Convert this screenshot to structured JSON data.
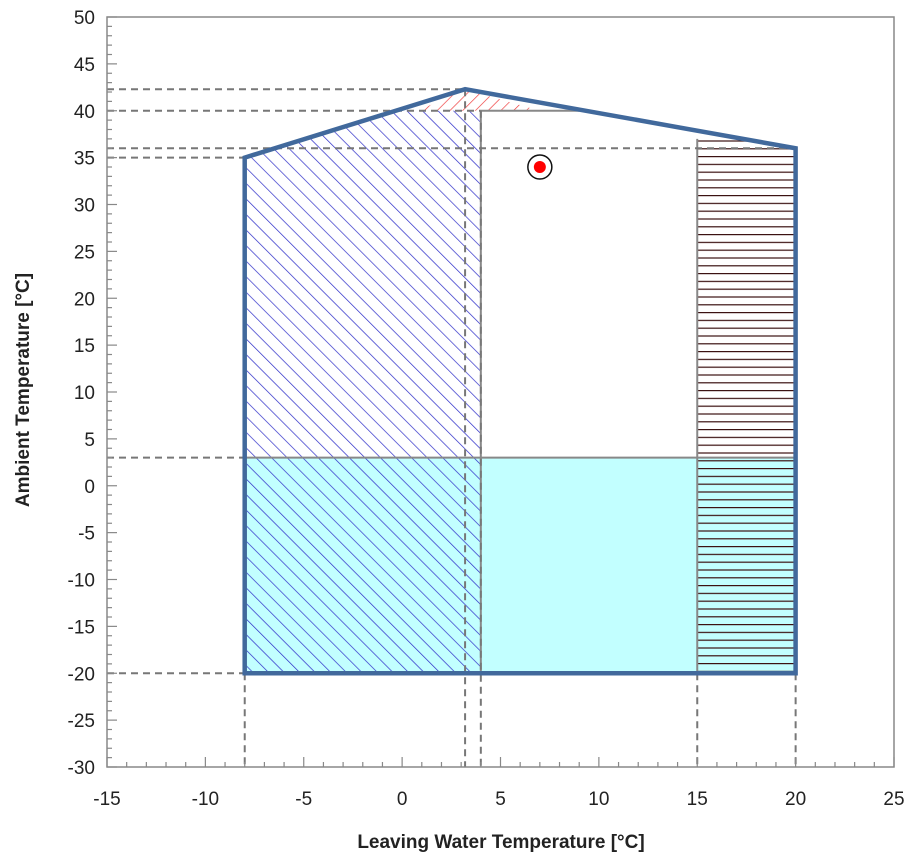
{
  "chart_data": {
    "type": "area",
    "xlabel": "Leaving Water Temperature [°C]",
    "ylabel": "Ambient Temperature [°C]",
    "xlim": [
      -15,
      25
    ],
    "ylim": [
      -30,
      50
    ],
    "x_ticks": [
      -15,
      -10,
      -5,
      0,
      5,
      10,
      15,
      20,
      25
    ],
    "y_ticks": [
      -30,
      -25,
      -20,
      -15,
      -10,
      -5,
      0,
      5,
      10,
      15,
      20,
      25,
      30,
      35,
      40,
      45,
      50
    ],
    "x_minor_step": 1,
    "y_minor_step": 1,
    "grid": false,
    "envelope": [
      [
        -8,
        -20
      ],
      [
        -8,
        35
      ],
      [
        3.2,
        42.3
      ],
      [
        20,
        36
      ],
      [
        20,
        -20
      ]
    ],
    "regions": [
      {
        "id": "low-ambient-zone",
        "fill": "cyan",
        "color": "#c2ffff",
        "x": [
          -8,
          20
        ],
        "y": [
          -20,
          3
        ]
      },
      {
        "id": "low-lwt-zone",
        "fill": "diagonal-hatch",
        "color": "#2c2cc8",
        "x": [
          -8,
          4
        ],
        "y": [
          -20,
          40
        ]
      },
      {
        "id": "high-lwt-zone",
        "fill": "horizontal-hatch",
        "color": "#3a1010",
        "x": [
          15,
          20
        ],
        "y": [
          -20,
          37
        ]
      },
      {
        "id": "high-ambient-zone",
        "fill": "diagonal-hatch-reverse",
        "color": "#ee3030",
        "polygon": [
          [
            0.8,
            40
          ],
          [
            3.2,
            42.3
          ],
          [
            7,
            40
          ]
        ]
      }
    ],
    "reference_lines": {
      "horizontal": [
        42.3,
        40,
        36,
        35,
        3,
        -20
      ],
      "vertical": [
        -8,
        3.2,
        4,
        15,
        20
      ]
    },
    "design_point": {
      "x": 7,
      "y": 34,
      "color": "#ff0000"
    },
    "colors": {
      "envelope": "#41699c",
      "axis": "#888888",
      "dashed": "#777777",
      "divider": "#888888"
    }
  }
}
